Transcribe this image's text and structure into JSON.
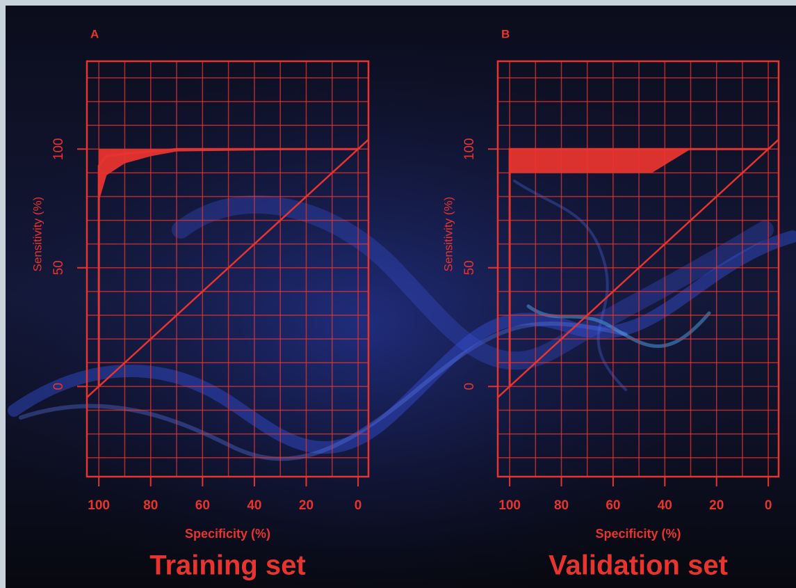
{
  "chart_data": [
    {
      "type": "roc",
      "panel_label": "A",
      "caption": "Training set",
      "x_label": "Specificity (%)",
      "y_label": "Sensitivity (%)",
      "x": [
        100,
        100,
        97,
        90,
        80,
        70,
        0
      ],
      "values": [
        0,
        93,
        97,
        98,
        99,
        100,
        100
      ],
      "ci_lower": [
        0,
        78,
        89,
        94,
        97,
        99,
        100
      ],
      "ci_upper": [
        0,
        100,
        100,
        100,
        100,
        100,
        100
      ],
      "color": "#e8342f",
      "xlim": [
        104.6,
        -4
      ],
      "ylim": [
        -38,
        137
      ],
      "xticks": [
        100,
        80,
        60,
        40,
        20,
        0
      ],
      "yticks": [
        0,
        50,
        100
      ],
      "x_gridlines": [
        100,
        90,
        80,
        70,
        60,
        50,
        40,
        30,
        20,
        10,
        0
      ],
      "y_gridlines": [
        -30,
        -20,
        -10,
        0,
        10,
        20,
        30,
        40,
        50,
        60,
        70,
        80,
        90,
        100,
        110,
        120,
        130
      ],
      "diagonal": true,
      "grid": true
    },
    {
      "type": "roc",
      "panel_label": "B",
      "caption": "Validation set",
      "x_label": "Specificity (%)",
      "y_label": "Sensitivity (%)",
      "x": [
        100,
        100,
        45,
        30,
        0
      ],
      "values": [
        0,
        100,
        100,
        100,
        100
      ],
      "ci_lower": [
        0,
        90,
        90,
        100,
        100
      ],
      "ci_upper": [
        0,
        100,
        100,
        100,
        100
      ],
      "color": "#e8342f",
      "xlim": [
        104.6,
        -4
      ],
      "ylim": [
        -38,
        137
      ],
      "xticks": [
        100,
        80,
        60,
        40,
        20,
        0
      ],
      "yticks": [
        0,
        50,
        100
      ],
      "x_gridlines": [
        100,
        90,
        80,
        70,
        60,
        50,
        40,
        30,
        20,
        10,
        0
      ],
      "y_gridlines": [
        -30,
        -20,
        -10,
        0,
        10,
        20,
        30,
        40,
        50,
        60,
        70,
        80,
        90,
        100,
        110,
        120,
        130
      ],
      "diagonal": true,
      "grid": true
    }
  ]
}
